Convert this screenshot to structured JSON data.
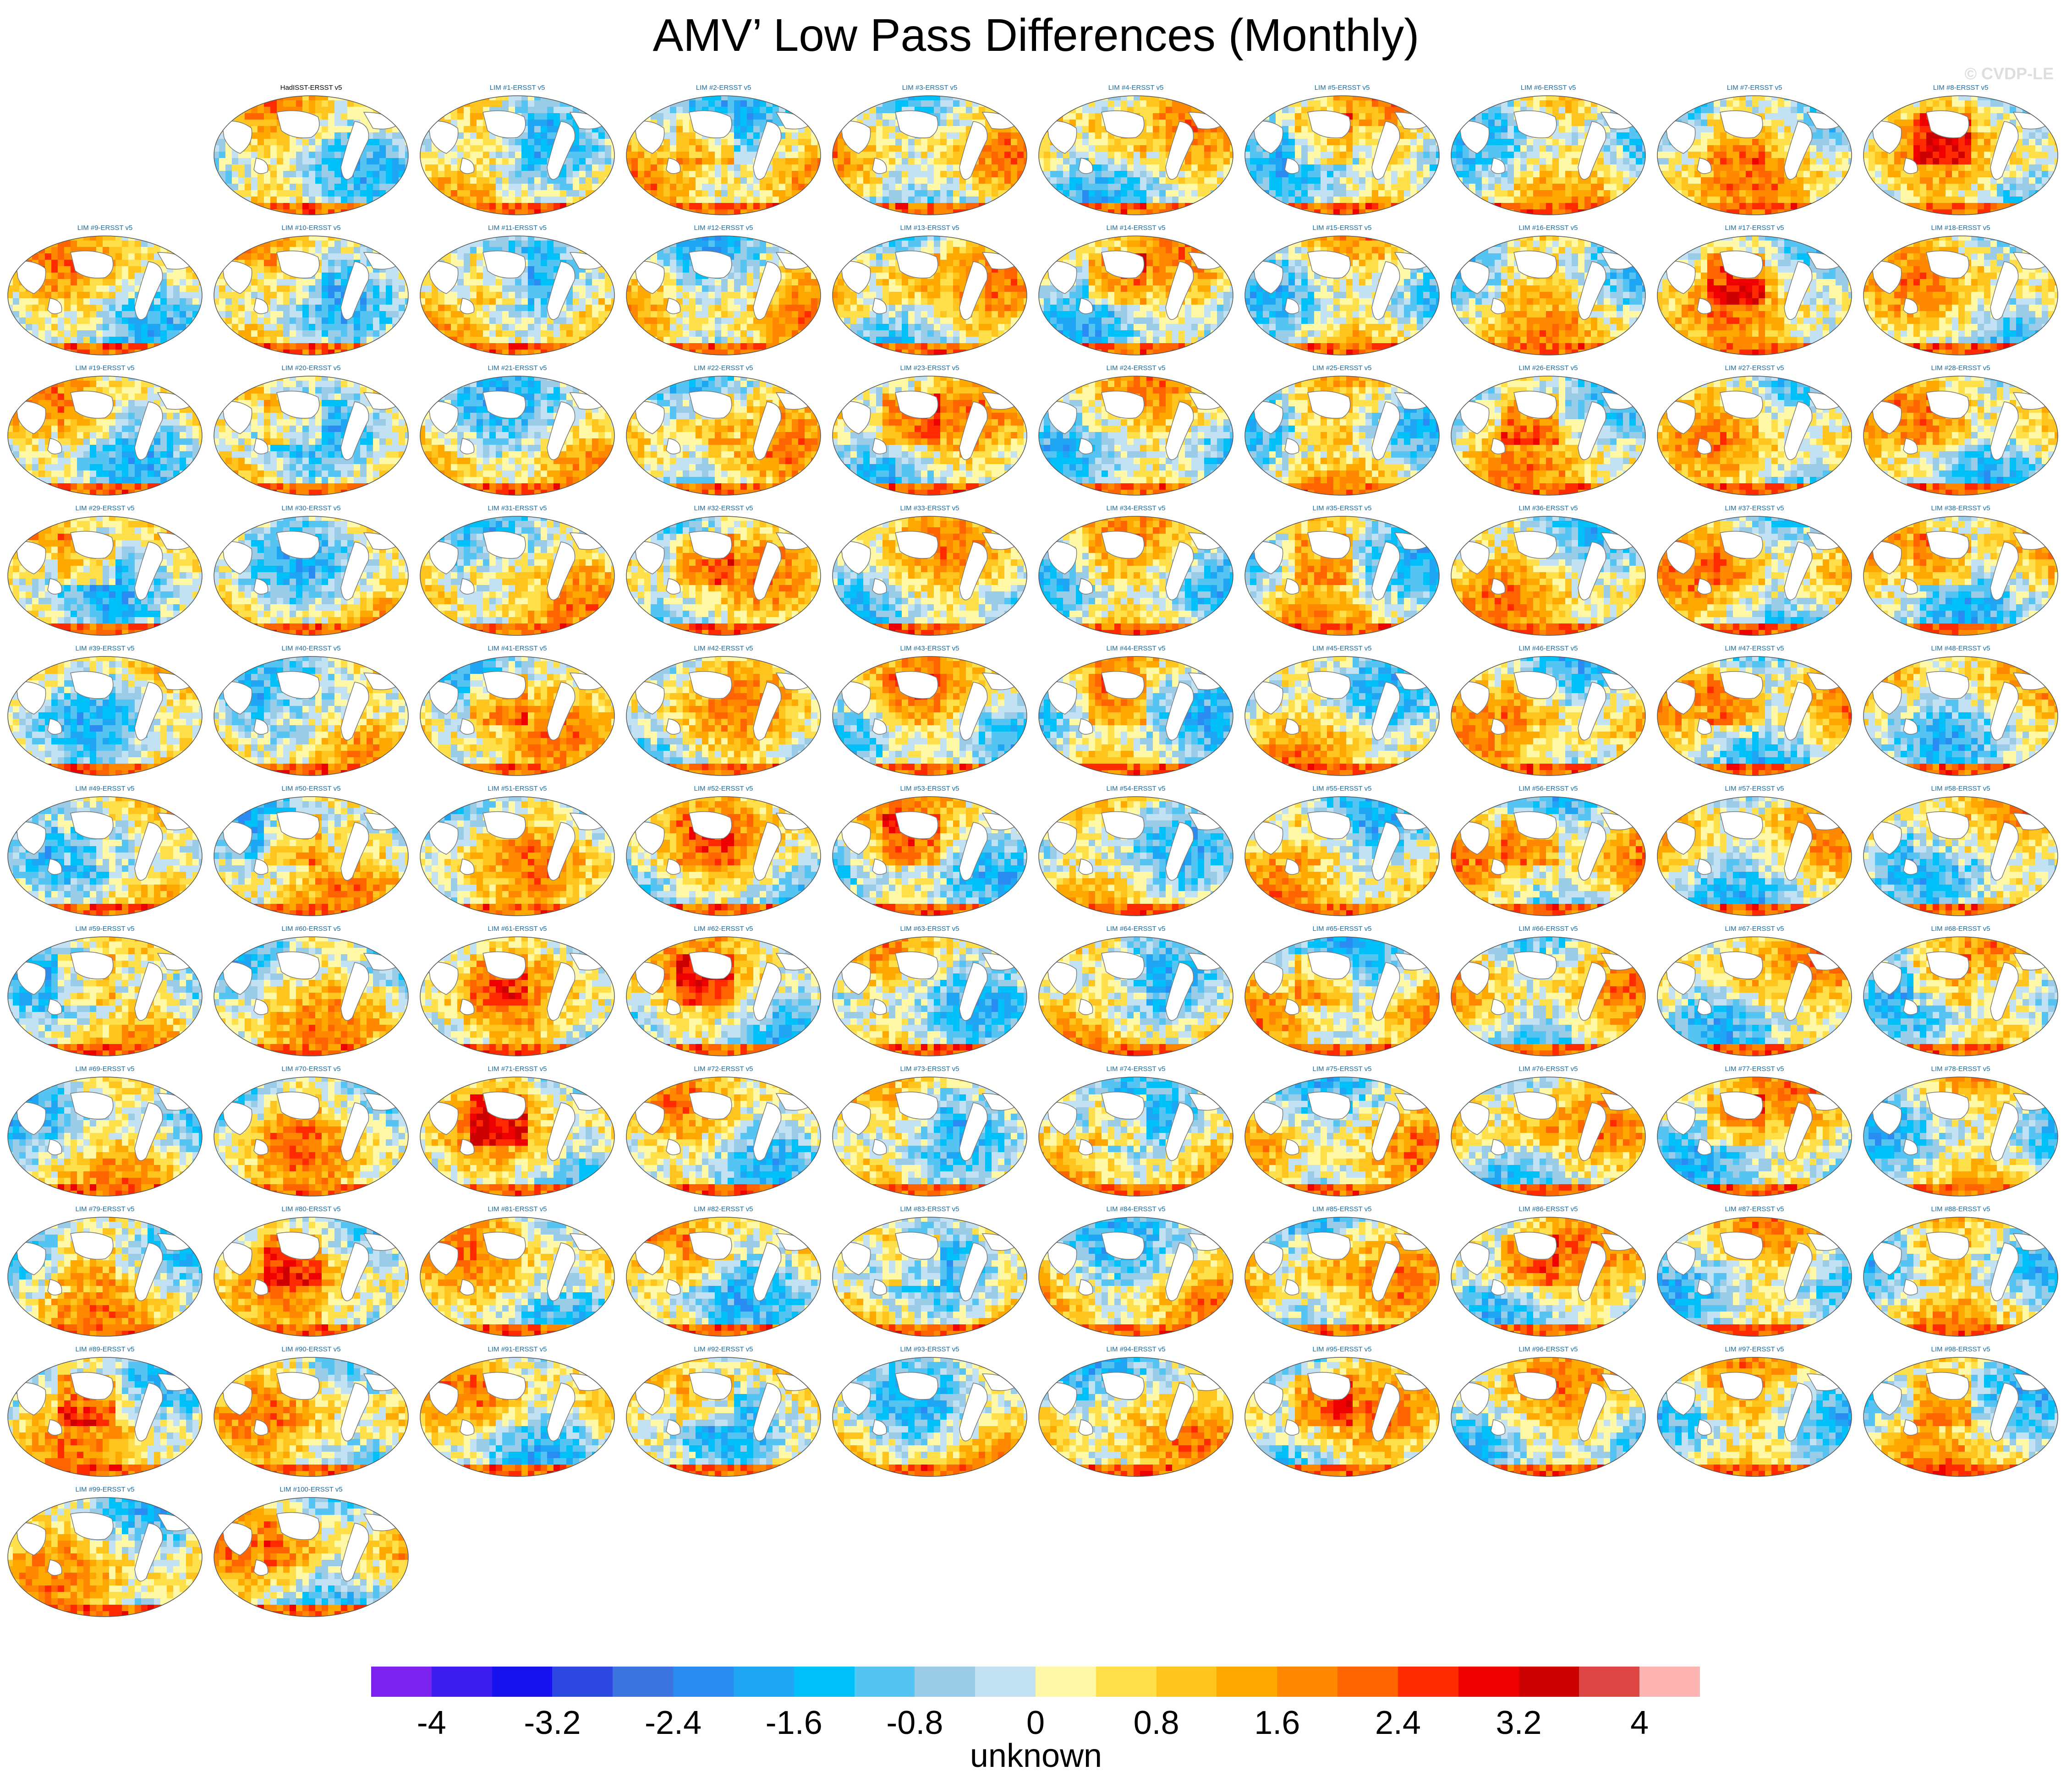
{
  "title": "AMV’ Low Pass Differences (Monthly)",
  "watermark": "© CVDP-LE",
  "chart_data": {
    "type": "heatmap",
    "description_units": "unknown",
    "panels": [
      "HadISST-ERSST v5",
      "LIM #1-ERSST v5",
      "LIM #2-ERSST v5",
      "LIM #3-ERSST v5",
      "LIM #4-ERSST v5",
      "LIM #5-ERSST v5",
      "LIM #6-ERSST v5",
      "LIM #7-ERSST v5",
      "LIM #8-ERSST v5",
      "LIM #9-ERSST v5",
      "LIM #10-ERSST v5",
      "LIM #11-ERSST v5",
      "LIM #12-ERSST v5",
      "LIM #13-ERSST v5",
      "LIM #14-ERSST v5",
      "LIM #15-ERSST v5",
      "LIM #16-ERSST v5",
      "LIM #17-ERSST v5",
      "LIM #18-ERSST v5",
      "LIM #19-ERSST v5",
      "LIM #20-ERSST v5",
      "LIM #21-ERSST v5",
      "LIM #22-ERSST v5",
      "LIM #23-ERSST v5",
      "LIM #24-ERSST v5",
      "LIM #25-ERSST v5",
      "LIM #26-ERSST v5",
      "LIM #27-ERSST v5",
      "LIM #28-ERSST v5",
      "LIM #29-ERSST v5",
      "LIM #30-ERSST v5",
      "LIM #31-ERSST v5",
      "LIM #32-ERSST v5",
      "LIM #33-ERSST v5",
      "LIM #34-ERSST v5",
      "LIM #35-ERSST v5",
      "LIM #36-ERSST v5",
      "LIM #37-ERSST v5",
      "LIM #38-ERSST v5",
      "LIM #39-ERSST v5",
      "LIM #40-ERSST v5",
      "LIM #41-ERSST v5",
      "LIM #42-ERSST v5",
      "LIM #43-ERSST v5",
      "LIM #44-ERSST v5",
      "LIM #45-ERSST v5",
      "LIM #46-ERSST v5",
      "LIM #47-ERSST v5",
      "LIM #48-ERSST v5",
      "LIM #49-ERSST v5",
      "LIM #50-ERSST v5",
      "LIM #51-ERSST v5",
      "LIM #52-ERSST v5",
      "LIM #53-ERSST v5",
      "LIM #54-ERSST v5",
      "LIM #55-ERSST v5",
      "LIM #56-ERSST v5",
      "LIM #57-ERSST v5",
      "LIM #58-ERSST v5",
      "LIM #59-ERSST v5",
      "LIM #60-ERSST v5",
      "LIM #61-ERSST v5",
      "LIM #62-ERSST v5",
      "LIM #63-ERSST v5",
      "LIM #64-ERSST v5",
      "LIM #65-ERSST v5",
      "LIM #66-ERSST v5",
      "LIM #67-ERSST v5",
      "LIM #68-ERSST v5",
      "LIM #69-ERSST v5",
      "LIM #70-ERSST v5",
      "LIM #71-ERSST v5",
      "LIM #72-ERSST v5",
      "LIM #73-ERSST v5",
      "LIM #74-ERSST v5",
      "LIM #75-ERSST v5",
      "LIM #76-ERSST v5",
      "LIM #77-ERSST v5",
      "LIM #78-ERSST v5",
      "LIM #79-ERSST v5",
      "LIM #80-ERSST v5",
      "LIM #81-ERSST v5",
      "LIM #82-ERSST v5",
      "LIM #83-ERSST v5",
      "LIM #84-ERSST v5",
      "LIM #85-ERSST v5",
      "LIM #86-ERSST v5",
      "LIM #87-ERSST v5",
      "LIM #88-ERSST v5",
      "LIM #89-ERSST v5",
      "LIM #90-ERSST v5",
      "LIM #91-ERSST v5",
      "LIM #92-ERSST v5",
      "LIM #93-ERSST v5",
      "LIM #94-ERSST v5",
      "LIM #95-ERSST v5",
      "LIM #96-ERSST v5",
      "LIM #97-ERSST v5",
      "LIM #98-ERSST v5",
      "LIM #99-ERSST v5",
      "LIM #100-ERSST v5"
    ],
    "colorbar": {
      "label": "unknown",
      "levels": [
        -4.4,
        -4,
        -3.6,
        -3.2,
        -2.8,
        -2.4,
        -2,
        -1.6,
        -1.2,
        -0.8,
        -0.4,
        0,
        0.4,
        0.8,
        1.2,
        1.6,
        2,
        2.4,
        2.8,
        3.2,
        3.6,
        4,
        4.4
      ],
      "tick_labels": [
        "-4",
        "-3.2",
        "-2.4",
        "-1.6",
        "-0.8",
        "0",
        "0.8",
        "1.6",
        "2.4",
        "3.2",
        "4"
      ],
      "tick_values": [
        -4,
        -3.2,
        -2.4,
        -1.6,
        -0.8,
        0,
        0.8,
        1.6,
        2.4,
        3.2,
        4
      ],
      "colors": [
        "#7c22ee",
        "#3d1cf0",
        "#1512ee",
        "#2c48e0",
        "#3c74e0",
        "#2a8bf2",
        "#1ea6f4",
        "#00c0fa",
        "#55c4f2",
        "#9acce8",
        "#c2e2f4",
        "#fff8a6",
        "#ffe04a",
        "#ffc41e",
        "#ffa800",
        "#ff8800",
        "#ff6400",
        "#ff2a00",
        "#ee0000",
        "#cc0000",
        "#dd4444",
        "#ffb4b4"
      ]
    }
  }
}
